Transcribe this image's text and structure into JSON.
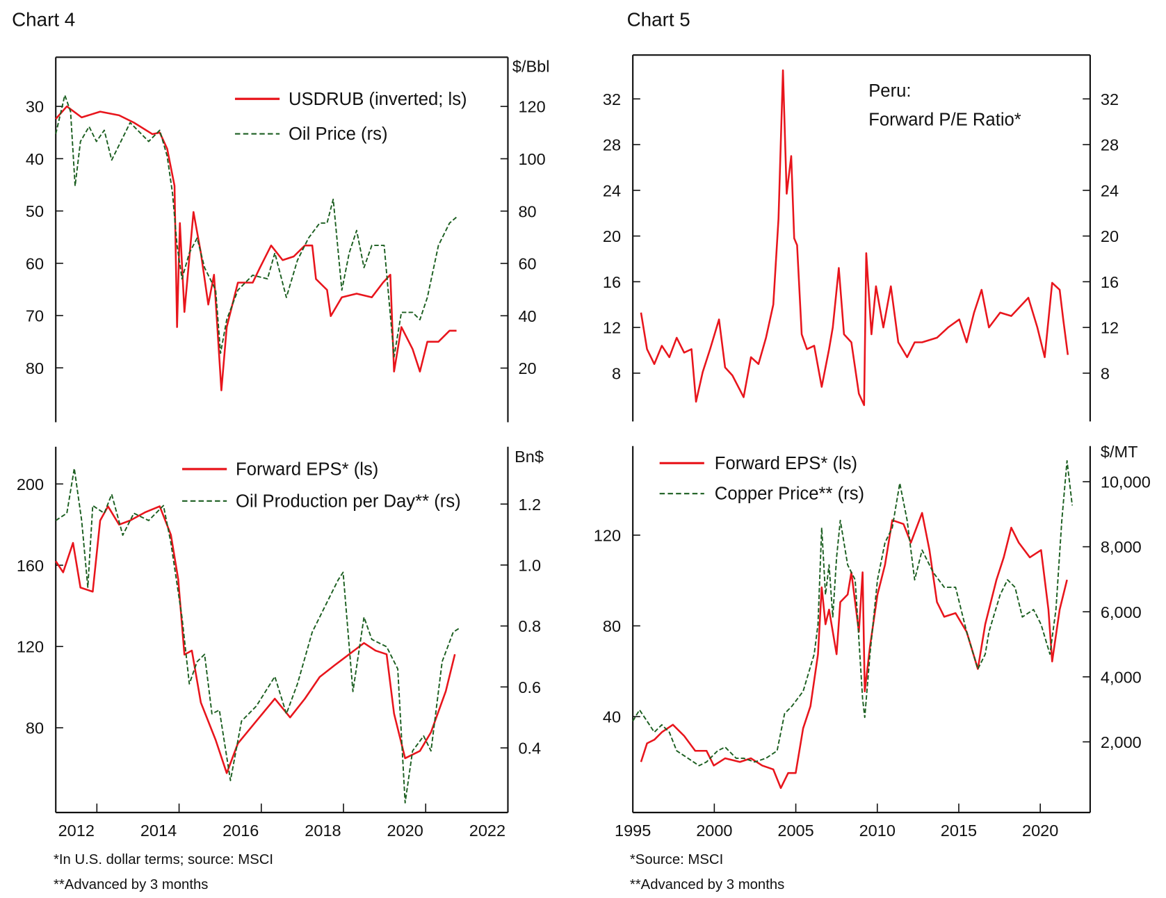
{
  "headings": {
    "chart4": "Chart 4",
    "chart5": "Chart 5"
  },
  "footnotes": {
    "chart4": [
      "*In U.S. dollar terms; source: MSCI",
      "**Advanced by 3 months"
    ],
    "chart5": [
      "*Source: MSCI",
      "**Advanced by 3 months"
    ]
  },
  "colors": {
    "red": "#e8151c",
    "green": "#1b5e20"
  },
  "chart_data": [
    {
      "type": "line",
      "panel": "chart4-top",
      "xlim": [
        2012,
        2023
      ],
      "ylim_left": [
        20.6,
        90.4
      ],
      "left_inverted": true,
      "ylim_right": [
        -0.7,
        138.8
      ],
      "left_ticks": [
        30,
        40,
        50,
        60,
        70,
        80
      ],
      "right_ticks": [
        120,
        100,
        80,
        60,
        40,
        20
      ],
      "right_unit": "$/Bbl",
      "x_ticks": [],
      "legend": [
        "USDRUB (inverted; ls)",
        "Oil Price (rs)"
      ],
      "series": [
        {
          "name": "USDRUB (inverted; ls)",
          "axis": "left",
          "color": "#e8151c",
          "dash": false,
          "x": [
            2012.0,
            2012.27,
            2012.63,
            2013.08,
            2013.54,
            2013.9,
            2014.35,
            2014.53,
            2014.71,
            2014.89,
            2014.95,
            2015.02,
            2015.13,
            2015.35,
            2015.53,
            2015.71,
            2015.85,
            2016.03,
            2016.16,
            2016.43,
            2016.79,
            2016.97,
            2017.24,
            2017.52,
            2017.79,
            2018.06,
            2018.24,
            2018.33,
            2018.6,
            2018.69,
            2018.96,
            2019.32,
            2019.69,
            2019.96,
            2020.14,
            2020.23,
            2020.41,
            2020.68,
            2020.86,
            2021.04,
            2021.31,
            2021.58,
            2021.75
          ],
          "y": [
            32.4,
            30,
            32.1,
            31,
            31.7,
            33.1,
            35.3,
            35,
            38.1,
            45.2,
            72.2,
            52.3,
            69.3,
            50.2,
            58,
            67.9,
            62.2,
            84.3,
            72.2,
            63.7,
            63.7,
            60.8,
            56.6,
            59.4,
            58.7,
            56.6,
            56.6,
            63,
            65.1,
            70.1,
            66.5,
            65.8,
            66.5,
            63.7,
            62.2,
            80.7,
            72.2,
            76.4,
            80.7,
            75,
            75,
            72.9,
            72.9
          ]
        },
        {
          "name": "Oil Price (rs)",
          "axis": "right",
          "color": "#1b5e20",
          "dash": true,
          "x": [
            2012.0,
            2012.22,
            2012.36,
            2012.47,
            2012.6,
            2012.81,
            2012.99,
            2013.18,
            2013.36,
            2013.63,
            2013.81,
            2014.08,
            2014.26,
            2014.53,
            2014.71,
            2014.84,
            2014.95,
            2015.07,
            2015.25,
            2015.44,
            2015.62,
            2015.89,
            2016.01,
            2016.16,
            2016.43,
            2016.79,
            2017.15,
            2017.33,
            2017.61,
            2017.88,
            2018.15,
            2018.42,
            2018.6,
            2018.75,
            2018.96,
            2019.14,
            2019.32,
            2019.5,
            2019.69,
            2019.99,
            2020.23,
            2020.41,
            2020.68,
            2020.86,
            2021.04,
            2021.31,
            2021.58,
            2021.75
          ],
          "y": [
            109.5,
            124.3,
            118,
            89.6,
            106.6,
            112.3,
            106.6,
            110.9,
            99.5,
            108.1,
            113.8,
            109.5,
            106.6,
            110.9,
            101,
            86.8,
            66.9,
            54.1,
            64,
            69.7,
            58.4,
            49.8,
            25.7,
            38.5,
            49.8,
            55.5,
            54.1,
            64,
            47,
            61.2,
            69.7,
            75.4,
            75.4,
            84.5,
            49.8,
            64,
            72.6,
            58.4,
            66.9,
            66.9,
            24.3,
            41.3,
            41.3,
            38.5,
            47,
            66.9,
            75.4,
            77.7
          ]
        }
      ]
    },
    {
      "type": "line",
      "panel": "chart4-bottom",
      "xlim": [
        2012,
        2023
      ],
      "ylim_left": [
        38.3,
        218.3
      ],
      "ylim_right": [
        0.188,
        1.388
      ],
      "left_ticks": [
        200,
        160,
        120,
        80
      ],
      "right_ticks": [
        "1.2",
        "1.0",
        "0.8",
        "0.6",
        "0.4"
      ],
      "right_unit": "Bn$",
      "x_ticks": [
        "2012",
        "2014",
        "2016",
        "2018",
        "2020",
        "2022"
      ],
      "legend": [
        "Forward EPS* (ls)",
        "Oil Production per Day** (rs)"
      ],
      "series": [
        {
          "name": "Forward EPS* (ls)",
          "axis": "left",
          "color": "#e8151c",
          "dash": false,
          "x": [
            2012.0,
            2012.18,
            2012.42,
            2012.6,
            2012.9,
            2013.08,
            2013.27,
            2013.54,
            2013.81,
            2014.17,
            2014.53,
            2014.8,
            2014.98,
            2015.13,
            2015.31,
            2015.53,
            2015.89,
            2016.16,
            2016.43,
            2016.88,
            2017.33,
            2017.7,
            2018.06,
            2018.42,
            2018.78,
            2019.14,
            2019.5,
            2019.78,
            2020.05,
            2020.23,
            2020.5,
            2020.86,
            2021.13,
            2021.49,
            2021.71
          ],
          "y": [
            162,
            156.5,
            171,
            149,
            147,
            182,
            189,
            180,
            182,
            186,
            189,
            175,
            153,
            116,
            118,
            92.4,
            74,
            57.7,
            72.3,
            83.3,
            94.3,
            85.1,
            94.3,
            105,
            110.7,
            116.2,
            121.7,
            118,
            116.2,
            87,
            65,
            68.6,
            77.8,
            98,
            116.2
          ]
        },
        {
          "name": "Oil Production per Day** (rs)",
          "axis": "right",
          "color": "#1b5e20",
          "dash": true,
          "x": [
            2012.0,
            2012.27,
            2012.45,
            2012.63,
            2012.78,
            2012.9,
            2013.18,
            2013.36,
            2013.63,
            2013.9,
            2014.26,
            2014.62,
            2014.8,
            2015.07,
            2015.25,
            2015.44,
            2015.62,
            2015.8,
            2015.98,
            2016.25,
            2016.52,
            2016.88,
            2017.33,
            2017.61,
            2017.88,
            2018.24,
            2018.6,
            2018.87,
            2018.99,
            2019.23,
            2019.5,
            2019.69,
            2020.05,
            2020.32,
            2020.5,
            2020.68,
            2020.95,
            2021.13,
            2021.4,
            2021.67,
            2021.82
          ],
          "y": [
            1.146,
            1.17,
            1.317,
            1.146,
            0.927,
            1.195,
            1.17,
            1.232,
            1.098,
            1.17,
            1.146,
            1.195,
            1.073,
            0.829,
            0.61,
            0.683,
            0.707,
            0.512,
            0.524,
            0.293,
            0.488,
            0.537,
            0.634,
            0.512,
            0.61,
            0.78,
            0.878,
            0.951,
            0.976,
            0.585,
            0.829,
            0.756,
            0.732,
            0.659,
            0.22,
            0.39,
            0.439,
            0.39,
            0.683,
            0.78,
            0.793
          ]
        }
      ]
    },
    {
      "type": "line",
      "panel": "chart5-top",
      "xlim": [
        1995,
        2023.06
      ],
      "ylim_left": [
        3.77,
        35.84
      ],
      "ylim_right": [
        3.77,
        35.84
      ],
      "left_ticks": [
        32,
        28,
        24,
        20,
        16,
        12,
        8
      ],
      "right_ticks": [
        32,
        28,
        24,
        20,
        16,
        12,
        8
      ],
      "right_unit": "",
      "x_ticks": [],
      "legend": [
        "Peru:",
        "Forward P/E Ratio*"
      ],
      "series": [
        {
          "name": "Forward P/E Ratio*",
          "axis": "left",
          "color": "#e8151c",
          "dash": false,
          "x": [
            1995.5,
            1995.87,
            1996.32,
            1996.78,
            1997.24,
            1997.69,
            1998.15,
            1998.6,
            1998.88,
            1999.29,
            1999.74,
            2000.29,
            2000.66,
            2001.11,
            2001.8,
            2002.25,
            2002.71,
            2003.17,
            2003.62,
            2003.94,
            2004.21,
            2004.44,
            2004.72,
            2004.9,
            2005.08,
            2005.36,
            2005.68,
            2006.13,
            2006.59,
            2007.04,
            2007.27,
            2007.64,
            2007.96,
            2008.41,
            2008.87,
            2009.19,
            2009.32,
            2009.64,
            2009.92,
            2010.37,
            2010.83,
            2011.29,
            2011.83,
            2012.29,
            2012.75,
            2013.66,
            2014.34,
            2015.03,
            2015.48,
            2015.94,
            2016.4,
            2016.85,
            2017.54,
            2018.22,
            2018.68,
            2019.27,
            2019.82,
            2020.27,
            2020.73,
            2021.19,
            2021.41,
            2021.69
          ],
          "y": [
            13.3,
            10.1,
            8.8,
            10.4,
            9.4,
            11.1,
            9.8,
            10.1,
            5.5,
            8.1,
            10.1,
            12.7,
            8.5,
            7.8,
            5.9,
            9.4,
            8.8,
            11.1,
            14,
            21.5,
            34.5,
            23.7,
            27,
            19.8,
            19.2,
            11.4,
            10.1,
            10.4,
            6.8,
            10.1,
            12,
            17.2,
            11.4,
            10.7,
            6.2,
            5.2,
            18.5,
            11.4,
            15.6,
            12,
            15.6,
            10.7,
            9.4,
            10.7,
            10.7,
            11.1,
            12,
            12.7,
            10.7,
            13.3,
            15.3,
            12,
            13.3,
            13,
            13.7,
            14.6,
            12,
            9.4,
            15.9,
            15.3,
            12.7,
            9.6
          ]
        }
      ]
    },
    {
      "type": "line",
      "panel": "chart5-bottom",
      "xlim": [
        1995,
        2023.06
      ],
      "ylim_left": [
        -2.3,
        159.3
      ],
      "ylim_right": [
        -172,
        11097
      ],
      "left_ticks": [
        120,
        80,
        40
      ],
      "right_ticks": [
        "10,000",
        "8,000",
        "6,000",
        "4,000",
        "2,000"
      ],
      "right_unit": "$/MT",
      "x_ticks": [
        "1995",
        "2000",
        "2005",
        "2010",
        "2015",
        "2020"
      ],
      "legend": [
        "Forward EPS* (ls)",
        "Copper Price** (rs)"
      ],
      "series": [
        {
          "name": "Forward EPS* (ls)",
          "axis": "left",
          "color": "#e8151c",
          "dash": false,
          "x": [
            1995.5,
            1995.87,
            1996.32,
            1996.78,
            1997.46,
            1998.15,
            1998.83,
            1999.52,
            1999.97,
            2000.66,
            2001.57,
            2002.25,
            2002.94,
            2003.62,
            2004.08,
            2004.53,
            2004.99,
            2005.45,
            2005.9,
            2006.36,
            2006.59,
            2006.82,
            2007.04,
            2007.5,
            2007.73,
            2008.18,
            2008.41,
            2008.87,
            2009.1,
            2009.23,
            2009.55,
            2010.01,
            2010.47,
            2010.92,
            2011.61,
            2012.06,
            2012.75,
            2013.2,
            2013.66,
            2014.11,
            2014.8,
            2015.48,
            2016.17,
            2016.62,
            2017.31,
            2017.76,
            2018.22,
            2018.68,
            2019.36,
            2020.05,
            2020.5,
            2020.73,
            2021.19,
            2021.64
          ],
          "y": [
            20,
            28.2,
            29.8,
            33.1,
            36.4,
            31.5,
            24.9,
            24.9,
            18.4,
            21.6,
            20,
            21.6,
            18.4,
            16.7,
            8.5,
            15.1,
            15.1,
            34.8,
            44.6,
            67.5,
            97,
            80.7,
            87.2,
            67.5,
            90.5,
            93.8,
            103.6,
            77.4,
            103.6,
            51.1,
            70.8,
            93.8,
            106.9,
            126.6,
            124.9,
            116.7,
            129.8,
            113.4,
            90.5,
            84,
            85.6,
            77.4,
            61,
            80.7,
            100.3,
            110.2,
            123.3,
            116.7,
            110.2,
            113.4,
            87.2,
            64.3,
            87.2,
            100.3
          ]
        },
        {
          "name": "Copper Price** (rs)",
          "axis": "right",
          "color": "#1b5e20",
          "dash": true,
          "x": [
            1995.0,
            1995.41,
            1995.87,
            1996.32,
            1996.78,
            1997.24,
            1997.69,
            1998.38,
            1999.06,
            1999.52,
            2000.2,
            2000.66,
            2001.34,
            2001.8,
            2002.48,
            2003.17,
            2003.85,
            2004.31,
            2004.76,
            2005.45,
            2006.13,
            2006.36,
            2006.59,
            2006.82,
            2007.04,
            2007.27,
            2007.5,
            2007.73,
            2008.18,
            2008.64,
            2009.1,
            2009.23,
            2009.55,
            2010.01,
            2010.47,
            2010.92,
            2011.38,
            2011.83,
            2012.29,
            2012.75,
            2013.43,
            2014.11,
            2014.8,
            2015.48,
            2016.17,
            2016.62,
            2016.85,
            2017.54,
            2017.99,
            2018.45,
            2018.9,
            2019.59,
            2020.05,
            2020.59,
            2020.96,
            2021.32,
            2021.64,
            2021.96
          ],
          "y": [
            2640,
            2983,
            2640,
            2297,
            2526,
            2297,
            1726,
            1497,
            1268,
            1383,
            1726,
            1840,
            1497,
            1497,
            1383,
            1497,
            1726,
            2869,
            3097,
            3554,
            4697,
            5612,
            8584,
            6526,
            7441,
            5840,
            7669,
            8812,
            7441,
            6983,
            3326,
            2754,
            4697,
            6983,
            8126,
            8584,
            9955,
            8812,
            6983,
            7898,
            7212,
            6755,
            6755,
            5383,
            4240,
            4697,
            5383,
            6526,
            6983,
            6755,
            5840,
            6069,
            5612,
            4697,
            6069,
            8812,
            10641,
            9270
          ]
        }
      ]
    }
  ]
}
